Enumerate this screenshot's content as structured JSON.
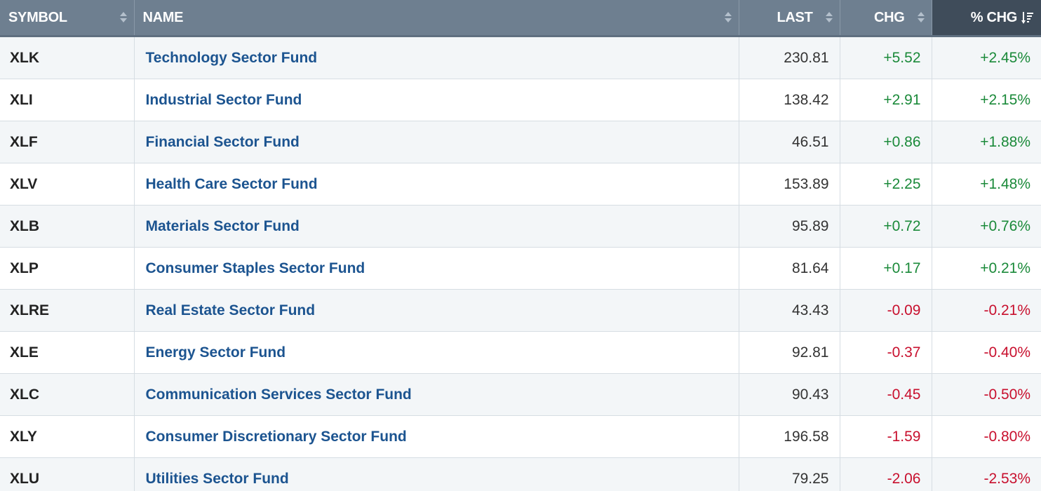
{
  "header": {
    "symbol": "SYMBOL",
    "name": "NAME",
    "last": "LAST",
    "chg": "CHG",
    "pct_chg": "% CHG"
  },
  "colors": {
    "positive": "#1b8a3a",
    "negative": "#c8102e",
    "link": "#1c5490",
    "header_bg": "#6e7f90",
    "active_header_bg": "#3f4c5a"
  },
  "icons": {
    "sort": "sort-updown-icon",
    "sort_active": "sort-descending-icon"
  },
  "rows": [
    {
      "symbol": "XLK",
      "name": "Technology Sector Fund",
      "last": "230.81",
      "chg": "+5.52",
      "pct": "+2.45%",
      "dir": "pos"
    },
    {
      "symbol": "XLI",
      "name": "Industrial Sector Fund",
      "last": "138.42",
      "chg": "+2.91",
      "pct": "+2.15%",
      "dir": "pos"
    },
    {
      "symbol": "XLF",
      "name": "Financial Sector Fund",
      "last": "46.51",
      "chg": "+0.86",
      "pct": "+1.88%",
      "dir": "pos"
    },
    {
      "symbol": "XLV",
      "name": "Health Care Sector Fund",
      "last": "153.89",
      "chg": "+2.25",
      "pct": "+1.48%",
      "dir": "pos"
    },
    {
      "symbol": "XLB",
      "name": "Materials Sector Fund",
      "last": "95.89",
      "chg": "+0.72",
      "pct": "+0.76%",
      "dir": "pos"
    },
    {
      "symbol": "XLP",
      "name": "Consumer Staples Sector Fund",
      "last": "81.64",
      "chg": "+0.17",
      "pct": "+0.21%",
      "dir": "pos"
    },
    {
      "symbol": "XLRE",
      "name": "Real Estate Sector Fund",
      "last": "43.43",
      "chg": "-0.09",
      "pct": "-0.21%",
      "dir": "neg"
    },
    {
      "symbol": "XLE",
      "name": "Energy Sector Fund",
      "last": "92.81",
      "chg": "-0.37",
      "pct": "-0.40%",
      "dir": "neg"
    },
    {
      "symbol": "XLC",
      "name": "Communication Services Sector Fund",
      "last": "90.43",
      "chg": "-0.45",
      "pct": "-0.50%",
      "dir": "neg"
    },
    {
      "symbol": "XLY",
      "name": "Consumer Discretionary Sector Fund",
      "last": "196.58",
      "chg": "-1.59",
      "pct": "-0.80%",
      "dir": "neg"
    },
    {
      "symbol": "XLU",
      "name": "Utilities Sector Fund",
      "last": "79.25",
      "chg": "-2.06",
      "pct": "-2.53%",
      "dir": "neg"
    }
  ]
}
